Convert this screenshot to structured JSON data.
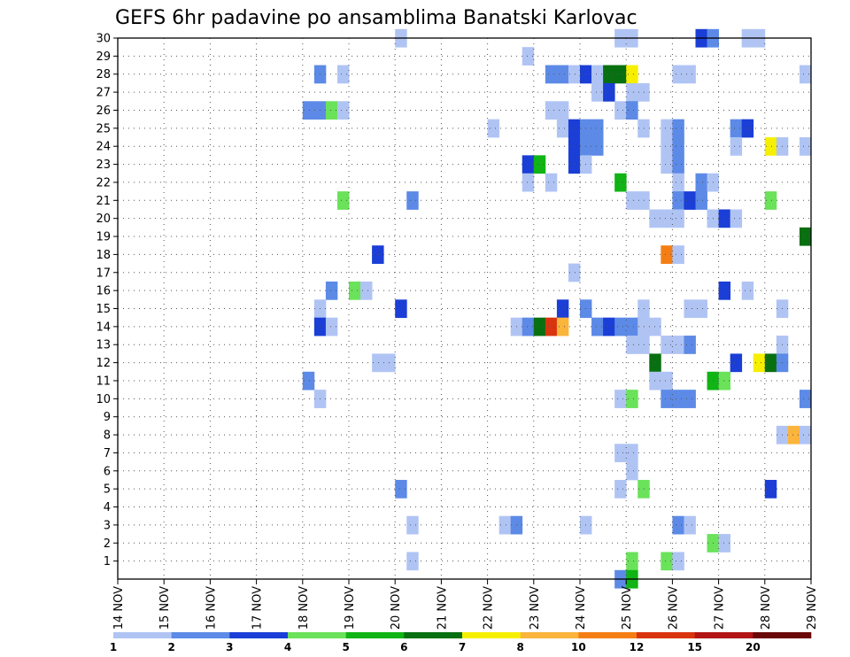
{
  "chart_data": {
    "type": "heatmap",
    "title": "GEFS 6hr padavine po ansamblima Banatski Karlovac",
    "x_ticks": [
      "14 NOV",
      "15 NOV",
      "16 NOV",
      "17 NOV",
      "18 NOV",
      "19 NOV",
      "20 NOV",
      "21 NOV",
      "22 NOV",
      "23 NOV",
      "24 NOV",
      "25 NOV",
      "26 NOV",
      "27 NOV",
      "28 NOV",
      "29 NOV"
    ],
    "y_ticks": [
      "1",
      "2",
      "3",
      "4",
      "5",
      "6",
      "7",
      "8",
      "9",
      "10",
      "11",
      "12",
      "13",
      "14",
      "15",
      "16",
      "17",
      "18",
      "19",
      "20",
      "21",
      "22",
      "23",
      "24",
      "25",
      "26",
      "27",
      "28",
      "29",
      "30"
    ],
    "xlim": [
      14,
      29
    ],
    "ylim": [
      0,
      30
    ],
    "grid": true,
    "time_step_hours": 6,
    "colorbar": {
      "labels": [
        "1",
        "2",
        "3",
        "4",
        "5",
        "6",
        "7",
        "8",
        "10",
        "12",
        "15",
        "20"
      ],
      "colors": [
        "#b0c4f4",
        "#5c8ae6",
        "#1a3ed6",
        "#6ae25a",
        "#10b414",
        "#087010",
        "#f6f000",
        "#fbb43c",
        "#f57e14",
        "#d9340e",
        "#b21414",
        "#6a0808"
      ]
    },
    "cells": [
      {
        "m": 30,
        "t": [
          [
            20.0,
            1
          ],
          [
            24.75,
            1
          ],
          [
            25.0,
            1
          ],
          [
            26.5,
            3
          ],
          [
            26.75,
            2
          ],
          [
            27.5,
            1
          ],
          [
            27.75,
            1
          ]
        ]
      },
      {
        "m": 29,
        "t": [
          [
            22.75,
            1
          ]
        ]
      },
      {
        "m": 28,
        "t": [
          [
            18.25,
            2
          ],
          [
            18.75,
            1
          ],
          [
            23.25,
            2
          ],
          [
            23.5,
            2
          ],
          [
            23.75,
            1
          ],
          [
            24.0,
            3
          ],
          [
            24.25,
            1
          ],
          [
            24.5,
            6
          ],
          [
            24.75,
            6
          ],
          [
            25.0,
            7
          ],
          [
            26.0,
            1
          ],
          [
            26.25,
            1
          ],
          [
            28.75,
            1
          ]
        ]
      },
      {
        "m": 27,
        "t": [
          [
            24.25,
            1
          ],
          [
            24.5,
            3
          ],
          [
            25.0,
            1
          ],
          [
            25.25,
            1
          ]
        ]
      },
      {
        "m": 26,
        "t": [
          [
            18.0,
            2
          ],
          [
            18.25,
            2
          ],
          [
            18.5,
            4
          ],
          [
            18.75,
            1
          ],
          [
            23.25,
            1
          ],
          [
            23.5,
            1
          ],
          [
            24.75,
            1
          ],
          [
            25.0,
            2
          ]
        ]
      },
      {
        "m": 25,
        "t": [
          [
            22.0,
            1
          ],
          [
            23.5,
            1
          ],
          [
            23.75,
            3
          ],
          [
            24.0,
            2
          ],
          [
            24.25,
            2
          ],
          [
            25.25,
            1
          ],
          [
            25.75,
            1
          ],
          [
            26.0,
            2
          ],
          [
            27.25,
            2
          ],
          [
            27.5,
            3
          ]
        ]
      },
      {
        "m": 24,
        "t": [
          [
            23.75,
            3
          ],
          [
            24.0,
            2
          ],
          [
            24.25,
            2
          ],
          [
            25.75,
            1
          ],
          [
            26.0,
            2
          ],
          [
            27.25,
            1
          ],
          [
            28.0,
            7
          ],
          [
            28.25,
            1
          ],
          [
            28.75,
            1
          ]
        ]
      },
      {
        "m": 23,
        "t": [
          [
            22.75,
            3
          ],
          [
            23.0,
            5
          ],
          [
            23.75,
            3
          ],
          [
            24.0,
            1
          ],
          [
            25.75,
            1
          ],
          [
            26.0,
            2
          ]
        ]
      },
      {
        "m": 22,
        "t": [
          [
            22.75,
            1
          ],
          [
            23.25,
            1
          ],
          [
            24.75,
            5
          ],
          [
            26.0,
            1
          ],
          [
            26.5,
            2
          ],
          [
            26.75,
            1
          ]
        ]
      },
      {
        "m": 21,
        "t": [
          [
            18.75,
            4
          ],
          [
            20.25,
            2
          ],
          [
            25.0,
            1
          ],
          [
            25.25,
            1
          ],
          [
            26.0,
            2
          ],
          [
            26.25,
            3
          ],
          [
            26.5,
            2
          ],
          [
            28.0,
            4
          ]
        ]
      },
      {
        "m": 20,
        "t": [
          [
            25.5,
            1
          ],
          [
            25.75,
            1
          ],
          [
            26.0,
            1
          ],
          [
            26.75,
            1
          ],
          [
            27.0,
            3
          ],
          [
            27.25,
            1
          ]
        ]
      },
      {
        "m": 19,
        "t": [
          [
            28.75,
            6
          ]
        ]
      },
      {
        "m": 18,
        "t": [
          [
            19.5,
            3
          ],
          [
            25.75,
            9
          ],
          [
            26.0,
            1
          ]
        ]
      },
      {
        "m": 17,
        "t": [
          [
            23.75,
            1
          ]
        ]
      },
      {
        "m": 16,
        "t": [
          [
            18.5,
            2
          ],
          [
            19.0,
            4
          ],
          [
            19.25,
            1
          ],
          [
            27.0,
            3
          ],
          [
            27.5,
            1
          ]
        ]
      },
      {
        "m": 15,
        "t": [
          [
            18.25,
            1
          ],
          [
            20.0,
            3
          ],
          [
            23.5,
            3
          ],
          [
            24.0,
            2
          ],
          [
            25.25,
            1
          ],
          [
            26.25,
            1
          ],
          [
            26.5,
            1
          ],
          [
            28.25,
            1
          ]
        ]
      },
      {
        "m": 14,
        "t": [
          [
            18.25,
            3
          ],
          [
            18.5,
            1
          ],
          [
            22.5,
            1
          ],
          [
            22.75,
            2
          ],
          [
            23.0,
            6
          ],
          [
            23.25,
            10
          ],
          [
            23.5,
            8
          ],
          [
            24.25,
            2
          ],
          [
            24.5,
            3
          ],
          [
            24.75,
            2
          ],
          [
            25.0,
            2
          ],
          [
            25.25,
            1
          ],
          [
            25.5,
            1
          ]
        ]
      },
      {
        "m": 13,
        "t": [
          [
            25.0,
            1
          ],
          [
            25.25,
            1
          ],
          [
            25.75,
            1
          ],
          [
            26.0,
            1
          ],
          [
            26.25,
            2
          ],
          [
            28.25,
            1
          ]
        ]
      },
      {
        "m": 12,
        "t": [
          [
            19.5,
            1
          ],
          [
            19.75,
            1
          ],
          [
            25.5,
            6
          ],
          [
            27.25,
            3
          ],
          [
            27.75,
            7
          ],
          [
            28.0,
            6
          ],
          [
            28.25,
            2
          ]
        ]
      },
      {
        "m": 11,
        "t": [
          [
            18.0,
            2
          ],
          [
            25.5,
            1
          ],
          [
            25.75,
            1
          ],
          [
            26.75,
            5
          ],
          [
            27.0,
            4
          ]
        ]
      },
      {
        "m": 10,
        "t": [
          [
            18.25,
            1
          ],
          [
            24.75,
            1
          ],
          [
            25.0,
            4
          ],
          [
            25.75,
            2
          ],
          [
            26.0,
            2
          ],
          [
            26.25,
            2
          ],
          [
            28.75,
            2
          ]
        ]
      },
      {
        "m": 8,
        "t": [
          [
            28.25,
            1
          ],
          [
            28.5,
            8
          ],
          [
            28.75,
            1
          ]
        ]
      },
      {
        "m": 7,
        "t": [
          [
            24.75,
            1
          ],
          [
            25.0,
            1
          ]
        ]
      },
      {
        "m": 6,
        "t": [
          [
            25.0,
            1
          ]
        ]
      },
      {
        "m": 5,
        "t": [
          [
            20.0,
            2
          ],
          [
            24.75,
            1
          ],
          [
            25.25,
            4
          ],
          [
            28.0,
            3
          ]
        ]
      },
      {
        "m": 3,
        "t": [
          [
            20.25,
            1
          ],
          [
            22.25,
            1
          ],
          [
            22.5,
            2
          ],
          [
            24.0,
            1
          ],
          [
            26.0,
            2
          ],
          [
            26.25,
            1
          ]
        ]
      },
      {
        "m": 2,
        "t": [
          [
            26.75,
            4
          ],
          [
            27.0,
            1
          ]
        ]
      },
      {
        "m": 1,
        "t": [
          [
            20.25,
            1
          ],
          [
            25.0,
            4
          ],
          [
            25.75,
            4
          ],
          [
            26.0,
            1
          ]
        ]
      },
      {
        "m": 0,
        "t": [
          [
            24.75,
            2
          ],
          [
            25.0,
            5
          ]
        ]
      }
    ]
  }
}
